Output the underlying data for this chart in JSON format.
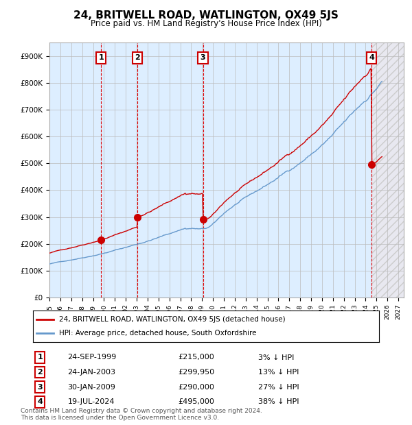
{
  "title": "24, BRITWELL ROAD, WATLINGTON, OX49 5JS",
  "subtitle": "Price paid vs. HM Land Registry's House Price Index (HPI)",
  "footer_line1": "Contains HM Land Registry data © Crown copyright and database right 2024.",
  "footer_line2": "This data is licensed under the Open Government Licence v3.0.",
  "legend_label_red": "24, BRITWELL ROAD, WATLINGTON, OX49 5JS (detached house)",
  "legend_label_blue": "HPI: Average price, detached house, South Oxfordshire",
  "sale_dates": [
    "24-SEP-1999",
    "24-JAN-2003",
    "30-JAN-2009",
    "19-JUL-2024"
  ],
  "sale_prices": [
    215000,
    299950,
    290000,
    495000
  ],
  "sale_pct": [
    "3%",
    "13%",
    "27%",
    "38%"
  ],
  "sale_years": [
    1999.73,
    2003.07,
    2009.08,
    2024.55
  ],
  "ylim": [
    0,
    950000
  ],
  "xlim_start": 1995.0,
  "xlim_end": 2027.5,
  "background_color": "#ffffff",
  "plot_bg_color": "#ffffff",
  "shaded_region_color": "#ddeeff",
  "hatch_region_color": "#e8e8e8",
  "grid_color": "#bbbbbb",
  "red_line_color": "#cc0000",
  "blue_line_color": "#6699cc",
  "dashed_vline_color": "#dd0000",
  "sale_marker_color": "#cc0000",
  "box_edge_color": "#cc0000",
  "box_face_color": "#ffffff"
}
